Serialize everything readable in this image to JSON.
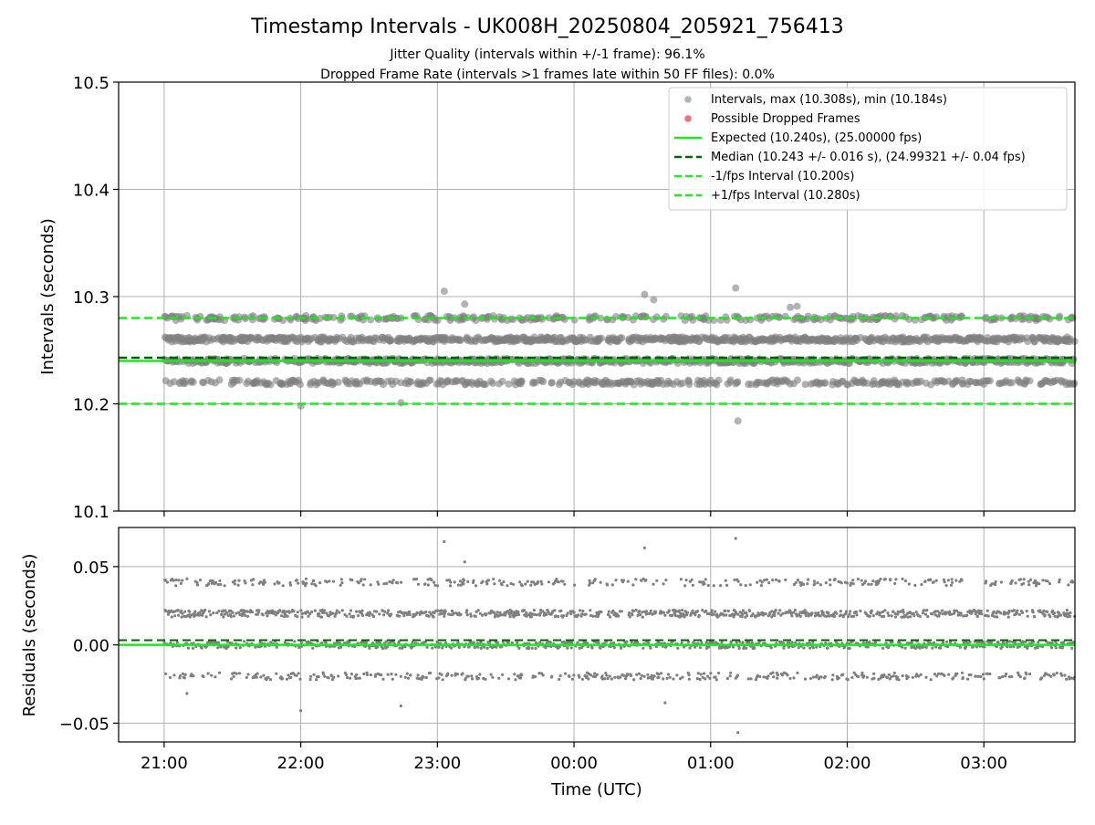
{
  "header": {
    "title": "Timestamp Intervals - UK008H_20250804_205921_756413",
    "subtitle_1": "Jitter Quality (intervals within +/-1 frame): 96.1%",
    "subtitle_2": "Dropped Frame Rate (intervals >1 frames late within 50 FF files): 0.0%"
  },
  "colors": {
    "points": "#808080",
    "dropped": "#e8383f",
    "expected": "#1ee81e",
    "median": "#006400",
    "interval_lines": "#1ee81e",
    "grid": "#b0b0b0",
    "axes": "#000000"
  },
  "chart_data": [
    {
      "type": "scatter",
      "name": "intervals-panel",
      "xlabel": "",
      "ylabel": "Intervals (seconds)",
      "xlim": [
        "20:40",
        "03:40"
      ],
      "ylim": [
        10.1,
        10.5
      ],
      "x_ticks": [
        "21:00",
        "22:00",
        "23:00",
        "00:00",
        "01:00",
        "02:00",
        "03:00"
      ],
      "y_ticks": [
        "10.1",
        "10.2",
        "10.3",
        "10.4",
        "10.5"
      ],
      "grid": true,
      "legend_position": "top-right",
      "data_start": "21:00",
      "data_end": "03:40",
      "point_count_estimate": 2300,
      "value_levels": [
        10.22,
        10.24,
        10.26,
        10.28
      ],
      "value_level_weights": [
        0.18,
        0.32,
        0.36,
        0.14
      ],
      "series": [
        {
          "name": "Intervals, max (10.308s), min (10.184s)",
          "kind": "scatter",
          "max": 10.308,
          "min": 10.184
        },
        {
          "name": "Possible Dropped Frames",
          "kind": "scatter",
          "values": []
        },
        {
          "name": "Expected (10.240s), (25.00000 fps)",
          "kind": "hline",
          "value": 10.24
        },
        {
          "name": "Median (10.243 +/- 0.016 s), (24.99321 +/- 0.04 fps)",
          "kind": "hline",
          "value": 10.243
        },
        {
          "name": "-1/fps Interval (10.200s)",
          "kind": "hline",
          "value": 10.2
        },
        {
          "name": "+1/fps Interval (10.280s)",
          "kind": "hline",
          "value": 10.28
        }
      ],
      "outliers": [
        {
          "x": "23:03",
          "y": 10.305
        },
        {
          "x": "23:12",
          "y": 10.293
        },
        {
          "x": "00:31",
          "y": 10.302
        },
        {
          "x": "00:35",
          "y": 10.297
        },
        {
          "x": "01:11",
          "y": 10.308
        },
        {
          "x": "01:12",
          "y": 10.184
        },
        {
          "x": "01:35",
          "y": 10.29
        },
        {
          "x": "01:38",
          "y": 10.291
        },
        {
          "x": "22:00",
          "y": 10.198
        },
        {
          "x": "22:44",
          "y": 10.201
        }
      ]
    },
    {
      "type": "scatter",
      "name": "residuals-panel",
      "xlabel": "Time (UTC)",
      "ylabel": "Residuals (seconds)",
      "xlim": [
        "20:40",
        "03:40"
      ],
      "ylim": [
        -0.062,
        0.075
      ],
      "x_ticks": [
        "21:00",
        "22:00",
        "23:00",
        "00:00",
        "01:00",
        "02:00",
        "03:00"
      ],
      "y_ticks": [
        "0.05",
        "0.00",
        "−0.05"
      ],
      "grid": true,
      "value_levels": [
        -0.02,
        0.0,
        0.02,
        0.04
      ],
      "value_level_weights": [
        0.18,
        0.32,
        0.36,
        0.14
      ],
      "series": [
        {
          "name": "Residuals",
          "kind": "scatter"
        },
        {
          "name": "Expected",
          "kind": "hline",
          "value": 0.0
        },
        {
          "name": "Median",
          "kind": "hline",
          "value": 0.003
        }
      ],
      "outliers": [
        {
          "x": "23:03",
          "y": 0.066
        },
        {
          "x": "23:12",
          "y": 0.053
        },
        {
          "x": "00:31",
          "y": 0.062
        },
        {
          "x": "01:11",
          "y": 0.068
        },
        {
          "x": "01:12",
          "y": -0.056
        },
        {
          "x": "22:00",
          "y": -0.042
        },
        {
          "x": "22:44",
          "y": -0.039
        },
        {
          "x": "00:40",
          "y": -0.037
        },
        {
          "x": "21:10",
          "y": -0.031
        }
      ]
    }
  ]
}
